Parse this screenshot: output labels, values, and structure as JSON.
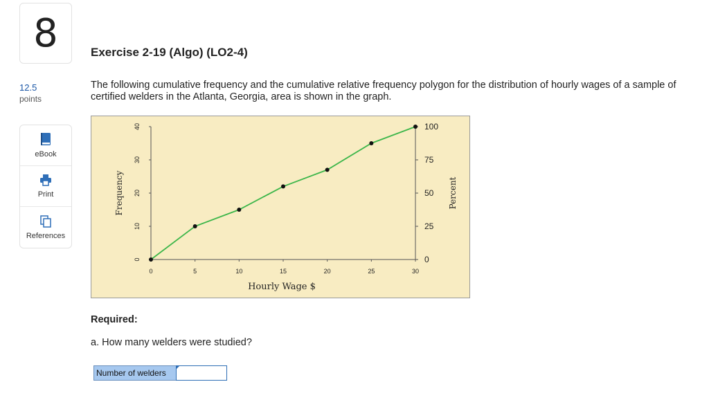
{
  "question": {
    "number": "8",
    "points_value": "12.5",
    "points_unit": "points",
    "title": "Exercise 2-19 (Algo) (LO2-4)",
    "prompt": "The following cumulative frequency and the cumulative relative frequency polygon for the distribution of hourly wages of a sample of certified welders in the Atlanta, Georgia, area is shown in the graph.",
    "required_label": "Required:",
    "part_a": "a. How many welders were studied?",
    "answer_label": "Number of welders",
    "answer_value": ""
  },
  "tools": [
    {
      "label": "eBook",
      "icon": "book-icon"
    },
    {
      "label": "Print",
      "icon": "printer-icon"
    },
    {
      "label": "References",
      "icon": "references-icon"
    }
  ],
  "chart_data": {
    "type": "line",
    "xlabel": "Hourly Wage $",
    "ylabel": "Frequency",
    "y2label": "Percent",
    "xlim": [
      0,
      30
    ],
    "ylim": [
      0,
      40
    ],
    "x_ticks": [
      "0",
      "5",
      "10",
      "15",
      "20",
      "25",
      "30"
    ],
    "y_ticks": [
      "0",
      "10",
      "20",
      "30",
      "40"
    ],
    "y2_ticks": [
      "0",
      "25",
      "50",
      "75",
      "100"
    ],
    "grid": false,
    "series": [
      {
        "points": [
          [
            0,
            0
          ],
          [
            5,
            10
          ],
          [
            10,
            15
          ],
          [
            15,
            22
          ],
          [
            20,
            27
          ],
          [
            25,
            35
          ],
          [
            30,
            40
          ]
        ]
      }
    ],
    "colors": {
      "line": "#3cb64a",
      "background": "#f8ecc2",
      "marker": "#111111"
    }
  }
}
